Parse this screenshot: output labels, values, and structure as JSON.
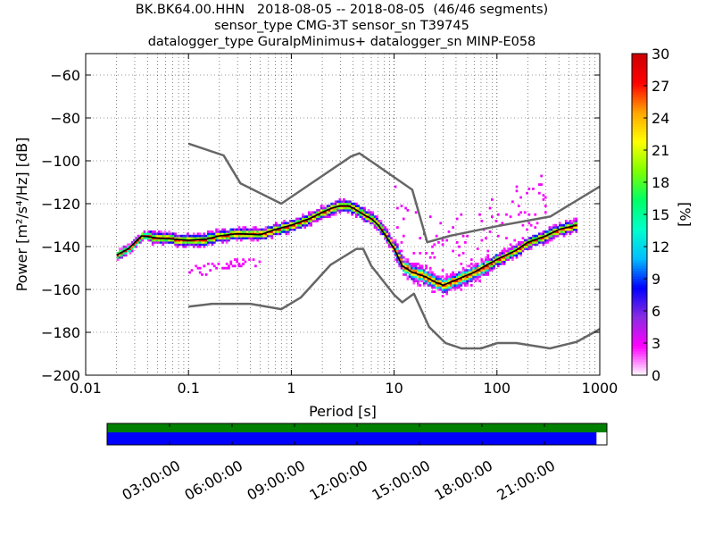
{
  "title": {
    "line1": "BK.BK64.00.HHN   2018-08-05 -- 2018-08-05  (46/46 segments)",
    "line2": "sensor_type CMG-3T sensor_sn T39745",
    "line3": "datalogger_type GuralpMinimus+ datalogger_sn MINP-E058"
  },
  "chart_data": [
    {
      "type": "heatmap",
      "title": "",
      "xlabel": "Period [s]",
      "ylabel": "Power [m²/s⁴/Hz] [dB]",
      "x_scale": "log",
      "xlim": [
        0.01,
        1000
      ],
      "ylim": [
        -200,
        -50
      ],
      "x_ticks": [
        0.01,
        0.1,
        1,
        10,
        100,
        1000
      ],
      "x_tick_labels": [
        "0.01",
        "0.1",
        "1",
        "10",
        "100",
        "1000"
      ],
      "y_ticks": [
        -200,
        -180,
        -160,
        -140,
        -120,
        -100,
        -80,
        -60
      ],
      "y_tick_labels": [
        "−200",
        "−180",
        "−160",
        "−140",
        "−120",
        "−100",
        "−80",
        "−60"
      ],
      "grid": true,
      "colorbar": {
        "label": "[%]",
        "range": [
          0,
          30
        ],
        "ticks": [
          0,
          3,
          6,
          9,
          12,
          15,
          18,
          21,
          24,
          27,
          30
        ],
        "colors": [
          "#ffffff",
          "#ff00ff",
          "#8a2be2",
          "#0000ff",
          "#00bfff",
          "#00ffcc",
          "#00ff66",
          "#7fff00",
          "#ffff00",
          "#ffa500",
          "#ff0000",
          "#cc0000"
        ]
      },
      "series": [
        {
          "role": "new-high-noise-model",
          "color": "#666666",
          "x": [
            0.1,
            0.22,
            0.32,
            0.8,
            3.8,
            4.6,
            6.3,
            15,
            21,
            35,
            100,
            330,
            1000
          ],
          "y": [
            -92,
            -97.5,
            -110.5,
            -120,
            -98,
            -96.5,
            -101,
            -113.5,
            -138,
            -135,
            -130.5,
            -126,
            -112
          ]
        },
        {
          "role": "new-low-noise-model",
          "color": "#666666",
          "x": [
            0.1,
            0.17,
            0.4,
            0.8,
            1.24,
            2.4,
            4.3,
            5,
            6,
            7.1,
            10,
            12,
            15.6,
            21.9,
            31.6,
            45,
            70,
            101,
            154,
            328,
            600,
            1000
          ],
          "y": [
            -168,
            -166.7,
            -166.7,
            -169.2,
            -163.7,
            -148.6,
            -141.1,
            -141.1,
            -149,
            -153.5,
            -162.5,
            -166,
            -162,
            -177.5,
            -185,
            -187.5,
            -187.5,
            -185,
            -185,
            -187.5,
            -184.4,
            -178.5
          ]
        },
        {
          "role": "mode",
          "color": "#000000",
          "x": [
            0.02,
            0.026,
            0.035,
            0.05,
            0.07,
            0.1,
            0.15,
            0.2,
            0.3,
            0.5,
            0.7,
            1,
            1.5,
            2,
            2.5,
            3,
            3.5,
            4,
            5,
            6,
            7,
            8,
            10,
            12,
            15,
            20,
            25,
            30,
            40,
            60,
            80,
            100,
            150,
            200,
            300,
            400,
            600
          ],
          "y": [
            -144,
            -141,
            -135,
            -136,
            -136.5,
            -137,
            -136.5,
            -135,
            -134,
            -134.5,
            -132,
            -130,
            -127,
            -124,
            -122,
            -121,
            -121,
            -122,
            -125,
            -127,
            -130,
            -134,
            -141,
            -149,
            -152,
            -154,
            -156.5,
            -158,
            -155.5,
            -152,
            -148.5,
            -146,
            -142,
            -138,
            -135,
            -132,
            -130
          ]
        }
      ],
      "annotation_timeline": {
        "ticks": [
          "03:00:00",
          "06:00:00",
          "09:00:00",
          "12:00:00",
          "15:00:00",
          "18:00:00",
          "21:00:00"
        ],
        "tick_hours": [
          3,
          6,
          9,
          12,
          15,
          18,
          21
        ],
        "range_hours": [
          0,
          24
        ],
        "bars": [
          {
            "role": "trace-coverage",
            "color": "#008000",
            "start": 0,
            "end": 24
          },
          {
            "role": "psd-coverage",
            "color": "#0000ff",
            "start": 0,
            "end": 23.5
          }
        ]
      }
    }
  ]
}
